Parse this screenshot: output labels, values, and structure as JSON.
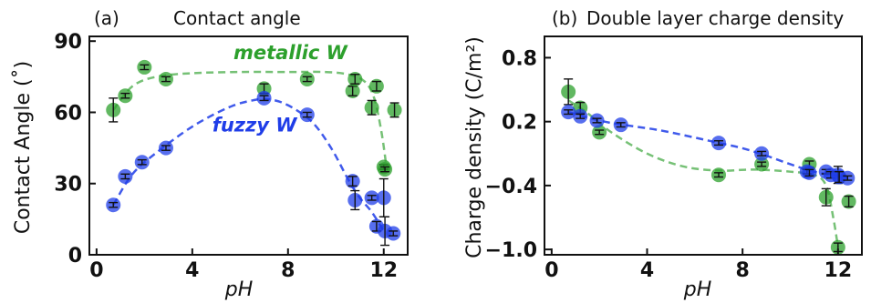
{
  "chart_data": [
    {
      "type": "scatter",
      "panel_label": "(a)",
      "title": "Contact angle",
      "xlabel": "pH",
      "ylabel": "Contact Angle (˚)",
      "xlim": [
        -0.3,
        13.0
      ],
      "ylim": [
        0,
        92
      ],
      "xticks": [
        0,
        4,
        8,
        12
      ],
      "yticks": [
        0,
        30,
        60,
        90
      ],
      "grid": false,
      "series": [
        {
          "name": "metallic W",
          "color": "#2ca02c",
          "points": [
            {
              "x": 0.7,
              "y": 61,
              "err": 5
            },
            {
              "x": 1.2,
              "y": 67,
              "err": 1
            },
            {
              "x": 2.0,
              "y": 79,
              "err": 1
            },
            {
              "x": 2.9,
              "y": 74,
              "err": 1
            },
            {
              "x": 7.0,
              "y": 70,
              "err": 2
            },
            {
              "x": 8.8,
              "y": 74,
              "err": 1
            },
            {
              "x": 10.7,
              "y": 69,
              "err": 2
            },
            {
              "x": 10.8,
              "y": 74,
              "err": 2
            },
            {
              "x": 11.5,
              "y": 62,
              "err": 3
            },
            {
              "x": 11.7,
              "y": 71,
              "err": 2
            },
            {
              "x": 12.0,
              "y": 37,
              "err": 1
            },
            {
              "x": 12.05,
              "y": 36,
              "err": 1
            },
            {
              "x": 12.45,
              "y": 61,
              "err": 3
            }
          ],
          "fit": [
            [
              0.7,
              61
            ],
            [
              1.5,
              71
            ],
            [
              2.5,
              75
            ],
            [
              4,
              76.5
            ],
            [
              6,
              77
            ],
            [
              8,
              77
            ],
            [
              9.5,
              77
            ],
            [
              10.5,
              76
            ],
            [
              11.2,
              73
            ],
            [
              11.6,
              66
            ],
            [
              11.9,
              52
            ],
            [
              12.1,
              38
            ]
          ]
        },
        {
          "name": "fuzzy W",
          "color": "#1f3de8",
          "points": [
            {
              "x": 0.7,
              "y": 21,
              "err": 1
            },
            {
              "x": 1.2,
              "y": 33,
              "err": 1
            },
            {
              "x": 1.9,
              "y": 39,
              "err": 1
            },
            {
              "x": 2.9,
              "y": 45,
              "err": 1
            },
            {
              "x": 7.0,
              "y": 66,
              "err": 1
            },
            {
              "x": 8.8,
              "y": 59,
              "err": 1
            },
            {
              "x": 10.7,
              "y": 31,
              "err": 2
            },
            {
              "x": 10.8,
              "y": 23,
              "err": 4
            },
            {
              "x": 11.5,
              "y": 24,
              "err": 1
            },
            {
              "x": 11.7,
              "y": 12,
              "err": 2
            },
            {
              "x": 12.0,
              "y": 24,
              "err": 8
            },
            {
              "x": 12.05,
              "y": 10,
              "err": 6
            },
            {
              "x": 12.4,
              "y": 9,
              "err": 1
            }
          ],
          "fit": [
            [
              0.7,
              21
            ],
            [
              1.5,
              34
            ],
            [
              2.5,
              43
            ],
            [
              4,
              54
            ],
            [
              5.5,
              62
            ],
            [
              6.5,
              65
            ],
            [
              7.2,
              65.5
            ],
            [
              8,
              63
            ],
            [
              9,
              56
            ],
            [
              9.8,
              45
            ],
            [
              10.5,
              32
            ],
            [
              11.0,
              24
            ],
            [
              11.5,
              18
            ],
            [
              12.0,
              10
            ]
          ]
        }
      ],
      "annotations": [
        {
          "text": "metallic W",
          "x": 8.1,
          "y": 82.5,
          "color": "#2ca02c"
        },
        {
          "text": "fuzzy W",
          "x": 6.6,
          "y": 52,
          "color": "#1f3de8"
        }
      ]
    },
    {
      "type": "scatter",
      "panel_label": "(b)",
      "title": "Double layer charge density",
      "xlabel": "pH",
      "ylabel": "Charge density (C/m²)",
      "xlim": [
        -0.3,
        13.0
      ],
      "ylim": [
        -1.05,
        1.0
      ],
      "xticks": [
        0,
        4,
        8,
        12
      ],
      "yticks": [
        -1.0,
        -0.4,
        0.2,
        0.8
      ],
      "ytick_labels": [
        "−1.0",
        "−0.4",
        "0.2",
        "0.8"
      ],
      "grid": false,
      "series": [
        {
          "name": "metallic W",
          "color": "#2ca02c",
          "points": [
            {
              "x": 0.7,
              "y": 0.48,
              "err": 0.12
            },
            {
              "x": 1.2,
              "y": 0.33,
              "err": 0.05
            },
            {
              "x": 2.0,
              "y": 0.1,
              "err": 0.02
            },
            {
              "x": 7.0,
              "y": -0.3,
              "err": 0.02
            },
            {
              "x": 8.8,
              "y": -0.2,
              "err": 0.02
            },
            {
              "x": 10.8,
              "y": -0.2,
              "err": 0.03
            },
            {
              "x": 11.5,
              "y": -0.51,
              "err": 0.08
            },
            {
              "x": 12.0,
              "y": -0.98,
              "err": 0.04
            },
            {
              "x": 12.45,
              "y": -0.55,
              "err": 0.05
            }
          ],
          "fit": [
            [
              0.7,
              0.4
            ],
            [
              1.5,
              0.28
            ],
            [
              2.5,
              0.1
            ],
            [
              4,
              -0.1
            ],
            [
              5.5,
              -0.22
            ],
            [
              7,
              -0.26
            ],
            [
              8.5,
              -0.25
            ],
            [
              10,
              -0.27
            ],
            [
              11,
              -0.3
            ],
            [
              11.5,
              -0.4
            ],
            [
              11.8,
              -0.7
            ],
            [
              12.0,
              -0.98
            ]
          ]
        },
        {
          "name": "fuzzy W",
          "color": "#1f3de8",
          "points": [
            {
              "x": 0.7,
              "y": 0.29,
              "err": 0.02
            },
            {
              "x": 1.2,
              "y": 0.25,
              "err": 0.02
            },
            {
              "x": 1.9,
              "y": 0.21,
              "err": 0.02
            },
            {
              "x": 2.9,
              "y": 0.17,
              "err": 0.02
            },
            {
              "x": 7.0,
              "y": 0.0,
              "err": 0.02
            },
            {
              "x": 8.8,
              "y": -0.1,
              "err": 0.02
            },
            {
              "x": 10.7,
              "y": -0.27,
              "err": 0.02
            },
            {
              "x": 10.8,
              "y": -0.28,
              "err": 0.03
            },
            {
              "x": 11.5,
              "y": -0.27,
              "err": 0.02
            },
            {
              "x": 11.7,
              "y": -0.3,
              "err": 0.03
            },
            {
              "x": 12.0,
              "y": -0.3,
              "err": 0.08
            },
            {
              "x": 12.05,
              "y": -0.32,
              "err": 0.05
            },
            {
              "x": 12.4,
              "y": -0.33,
              "err": 0.02
            }
          ],
          "fit": [
            [
              0.7,
              0.29
            ],
            [
              2,
              0.21
            ],
            [
              3,
              0.17
            ],
            [
              4.5,
              0.12
            ],
            [
              6,
              0.05
            ],
            [
              7,
              0.0
            ],
            [
              8,
              -0.05
            ],
            [
              9,
              -0.12
            ],
            [
              10,
              -0.2
            ],
            [
              11,
              -0.27
            ],
            [
              12,
              -0.31
            ],
            [
              12.4,
              -0.33
            ]
          ]
        }
      ]
    }
  ]
}
